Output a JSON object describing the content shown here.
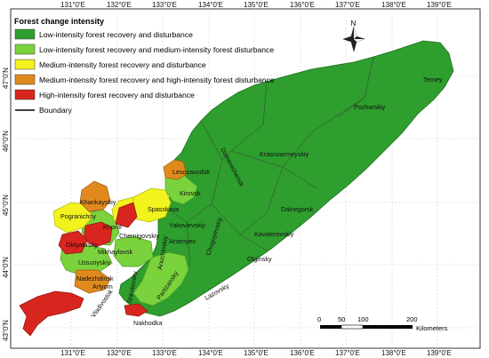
{
  "legend": {
    "title": "Forest change intensity",
    "items": [
      {
        "label": "Low-intensity forest recovery and disturbance",
        "color": "#2e9e2e"
      },
      {
        "label": "Low-intensity forest recovery and medium-intensity forest disturbance",
        "color": "#7ad23c"
      },
      {
        "label": "Medium-intensity forest recovery and disturbance",
        "color": "#f2f21e"
      },
      {
        "label": "Medium-intensity forest recovery and high-intensity forest disturbance",
        "color": "#e08a1e"
      },
      {
        "label": "High-intensity forest recovery and disturbance",
        "color": "#d8261e"
      }
    ],
    "boundary_label": "Boundary"
  },
  "axes": {
    "top_ticks": [
      "131°0'E",
      "132°0'E",
      "133°0'E",
      "134°0'E",
      "135°0'E",
      "136°0'E",
      "137°0'E",
      "138°0'E",
      "139°0'E"
    ],
    "bottom_ticks": [
      "131°0'E",
      "132°0'E",
      "133°0'E",
      "134°0'E",
      "135°0'E",
      "136°0'E",
      "137°0'E",
      "138°0'E",
      "139°0'E"
    ],
    "left_ticks": [
      "47°0'N",
      "46°0'N",
      "45°0'N",
      "44°0'N",
      "43°0'N"
    ]
  },
  "north_arrow": {
    "label": "N"
  },
  "scale_bar": {
    "labels": [
      "0",
      "50",
      "100",
      "200"
    ],
    "unit": "Kilometers"
  },
  "places": [
    "Terney",
    "Pozharskiy",
    "Krasnoarmeyskiy",
    "Dalnerechensk",
    "Lesozavodsk",
    "Dalnegorsk",
    "Kirovsk",
    "Khankayskiy",
    "Spasskaya",
    "Pogranichny",
    "Yakovlevskiy",
    "Khorol",
    "Chernigovskiy",
    "Arsenyev",
    "Kavalerovskiy",
    "Chuguyevskiy",
    "Oktyabrsky",
    "Anuchinskiy",
    "Mikhaylovsk",
    "Olginsky",
    "Ussuriyskiy",
    "Nadezhdinsk",
    "Artyom",
    "Partizansky",
    "Shkotovsky",
    "Lazovsky",
    "Vladivostok",
    "Nakhodka"
  ]
}
